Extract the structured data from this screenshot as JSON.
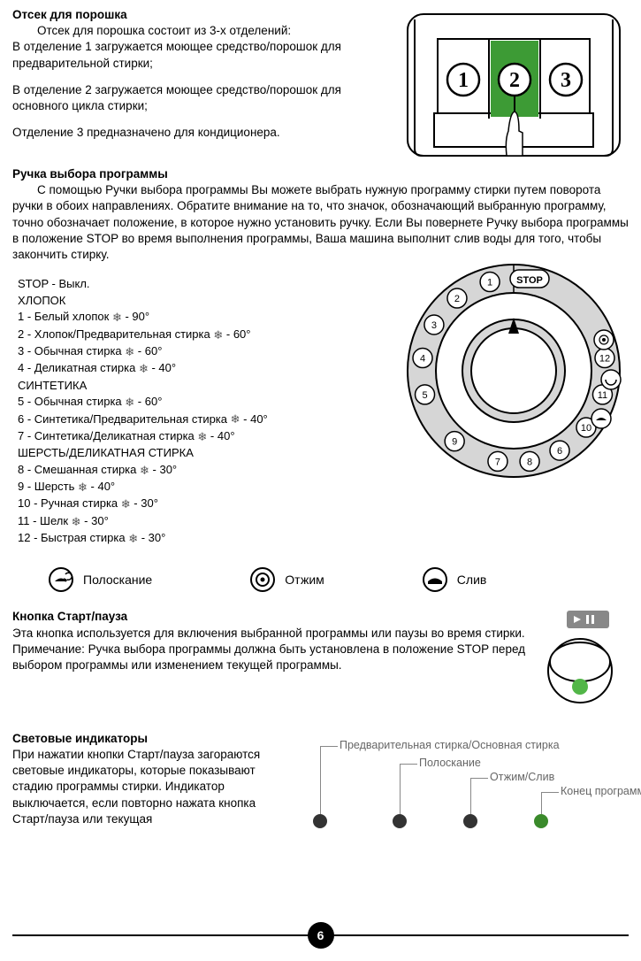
{
  "detergent": {
    "title": "Отсек для порошка",
    "intro": "Отсек для порошка состоит из 3-х отделений:",
    "p1": "В отделение 1 загружается моющее средство/порошок для предварительной стирки;",
    "p2": "В отделение 2 загружается моющее средство/порошок для основного цикла стирки;",
    "p3": "Отделение 3 предназначено для кондиционера.",
    "labels": [
      "1",
      "2",
      "3"
    ]
  },
  "selector": {
    "title": "Ручка выбора программы",
    "body": "С помощью Ручки выбора программы Вы можете выбрать нужную программу стирки путем поворота ручки в обоих направлениях. Обратите внимание на то, что значок, обозначающий выбранную программу, точно обозначает положение, в которое нужно установить ручку. Если Вы повернете Ручку выбора программы в положение STOP во время выполнения программы, Ваша машина выполнит слив воды для того, чтобы закончить стирку."
  },
  "programs": {
    "stop": "STOP - Выкл.",
    "g1": "ХЛОПОК",
    "l1": " 1 - Белый хлопок  ",
    "t1": " - 90°",
    "l2": " 2 - Хлопок/Предварительная стирка  ",
    "t2": " - 60°",
    "l3": " 3 - Обычная стирка  ",
    "t3": " - 60°",
    "l4": " 4 - Деликатная стирка  ",
    "t4": " - 40°",
    "g2": "СИНТЕТИКА",
    "l5": " 5 - Обычная стирка  ",
    "t5": " - 60°",
    "l6": " 6 - Синтетика/Предварительная стирка  ",
    "t6": " - 40°",
    "l7": " 7 - Синтетика/Деликатная стирка  ",
    "t7": " - 40°",
    "g3": "ШЕРСТЬ/ДЕЛИКАТНАЯ СТИРКА",
    "l8": " 8 - Смешанная стирка  ",
    "t8": " - 30°",
    "l9": " 9 - Шерсть  ",
    "t9": " - 40°",
    "l10": "10 - Ручная стирка  ",
    "t10": " - 30°",
    "l11": "11 - Шелк  ",
    "t11": " - 30°",
    "l12": "12 - Быстрая стирка  ",
    "t12": " - 30°"
  },
  "dial": {
    "stop": "STOP",
    "nums": [
      "1",
      "2",
      "3",
      "4",
      "5",
      "9",
      "7",
      "8",
      "6",
      "10",
      "11",
      "12"
    ]
  },
  "legend": {
    "rinse": "Полоскание",
    "spin": "Отжим",
    "drain": "Слив"
  },
  "start": {
    "title": "Кнопка Старт/пауза",
    "body": "Эта кнопка используется для включения выбранной программы или паузы во время стирки.\nПримечание: Ручка выбора программы должна быть установлена в положение STOP перед выбором программы или изменением текущей программы."
  },
  "leds": {
    "title": "Световые индикаторы",
    "body": "При нажатии кнопки Старт/пауза загораются световые индикаторы, которые показывают стадию программы стирки. Индикатор выключается, если повторно нажата кнопка Старт/пауза или текущая",
    "labels": {
      "a": "Предварительная стирка/Основная стирка",
      "b": "Полоскание",
      "c": "Отжим/Слив",
      "d": "Конец программы"
    },
    "colors": [
      "#333333",
      "#333333",
      "#333333",
      "#3a8a2b"
    ]
  },
  "page": "6",
  "colors": {
    "green": "#3d9b35",
    "grey": "#cccccc",
    "darkgrey": "#888888"
  }
}
